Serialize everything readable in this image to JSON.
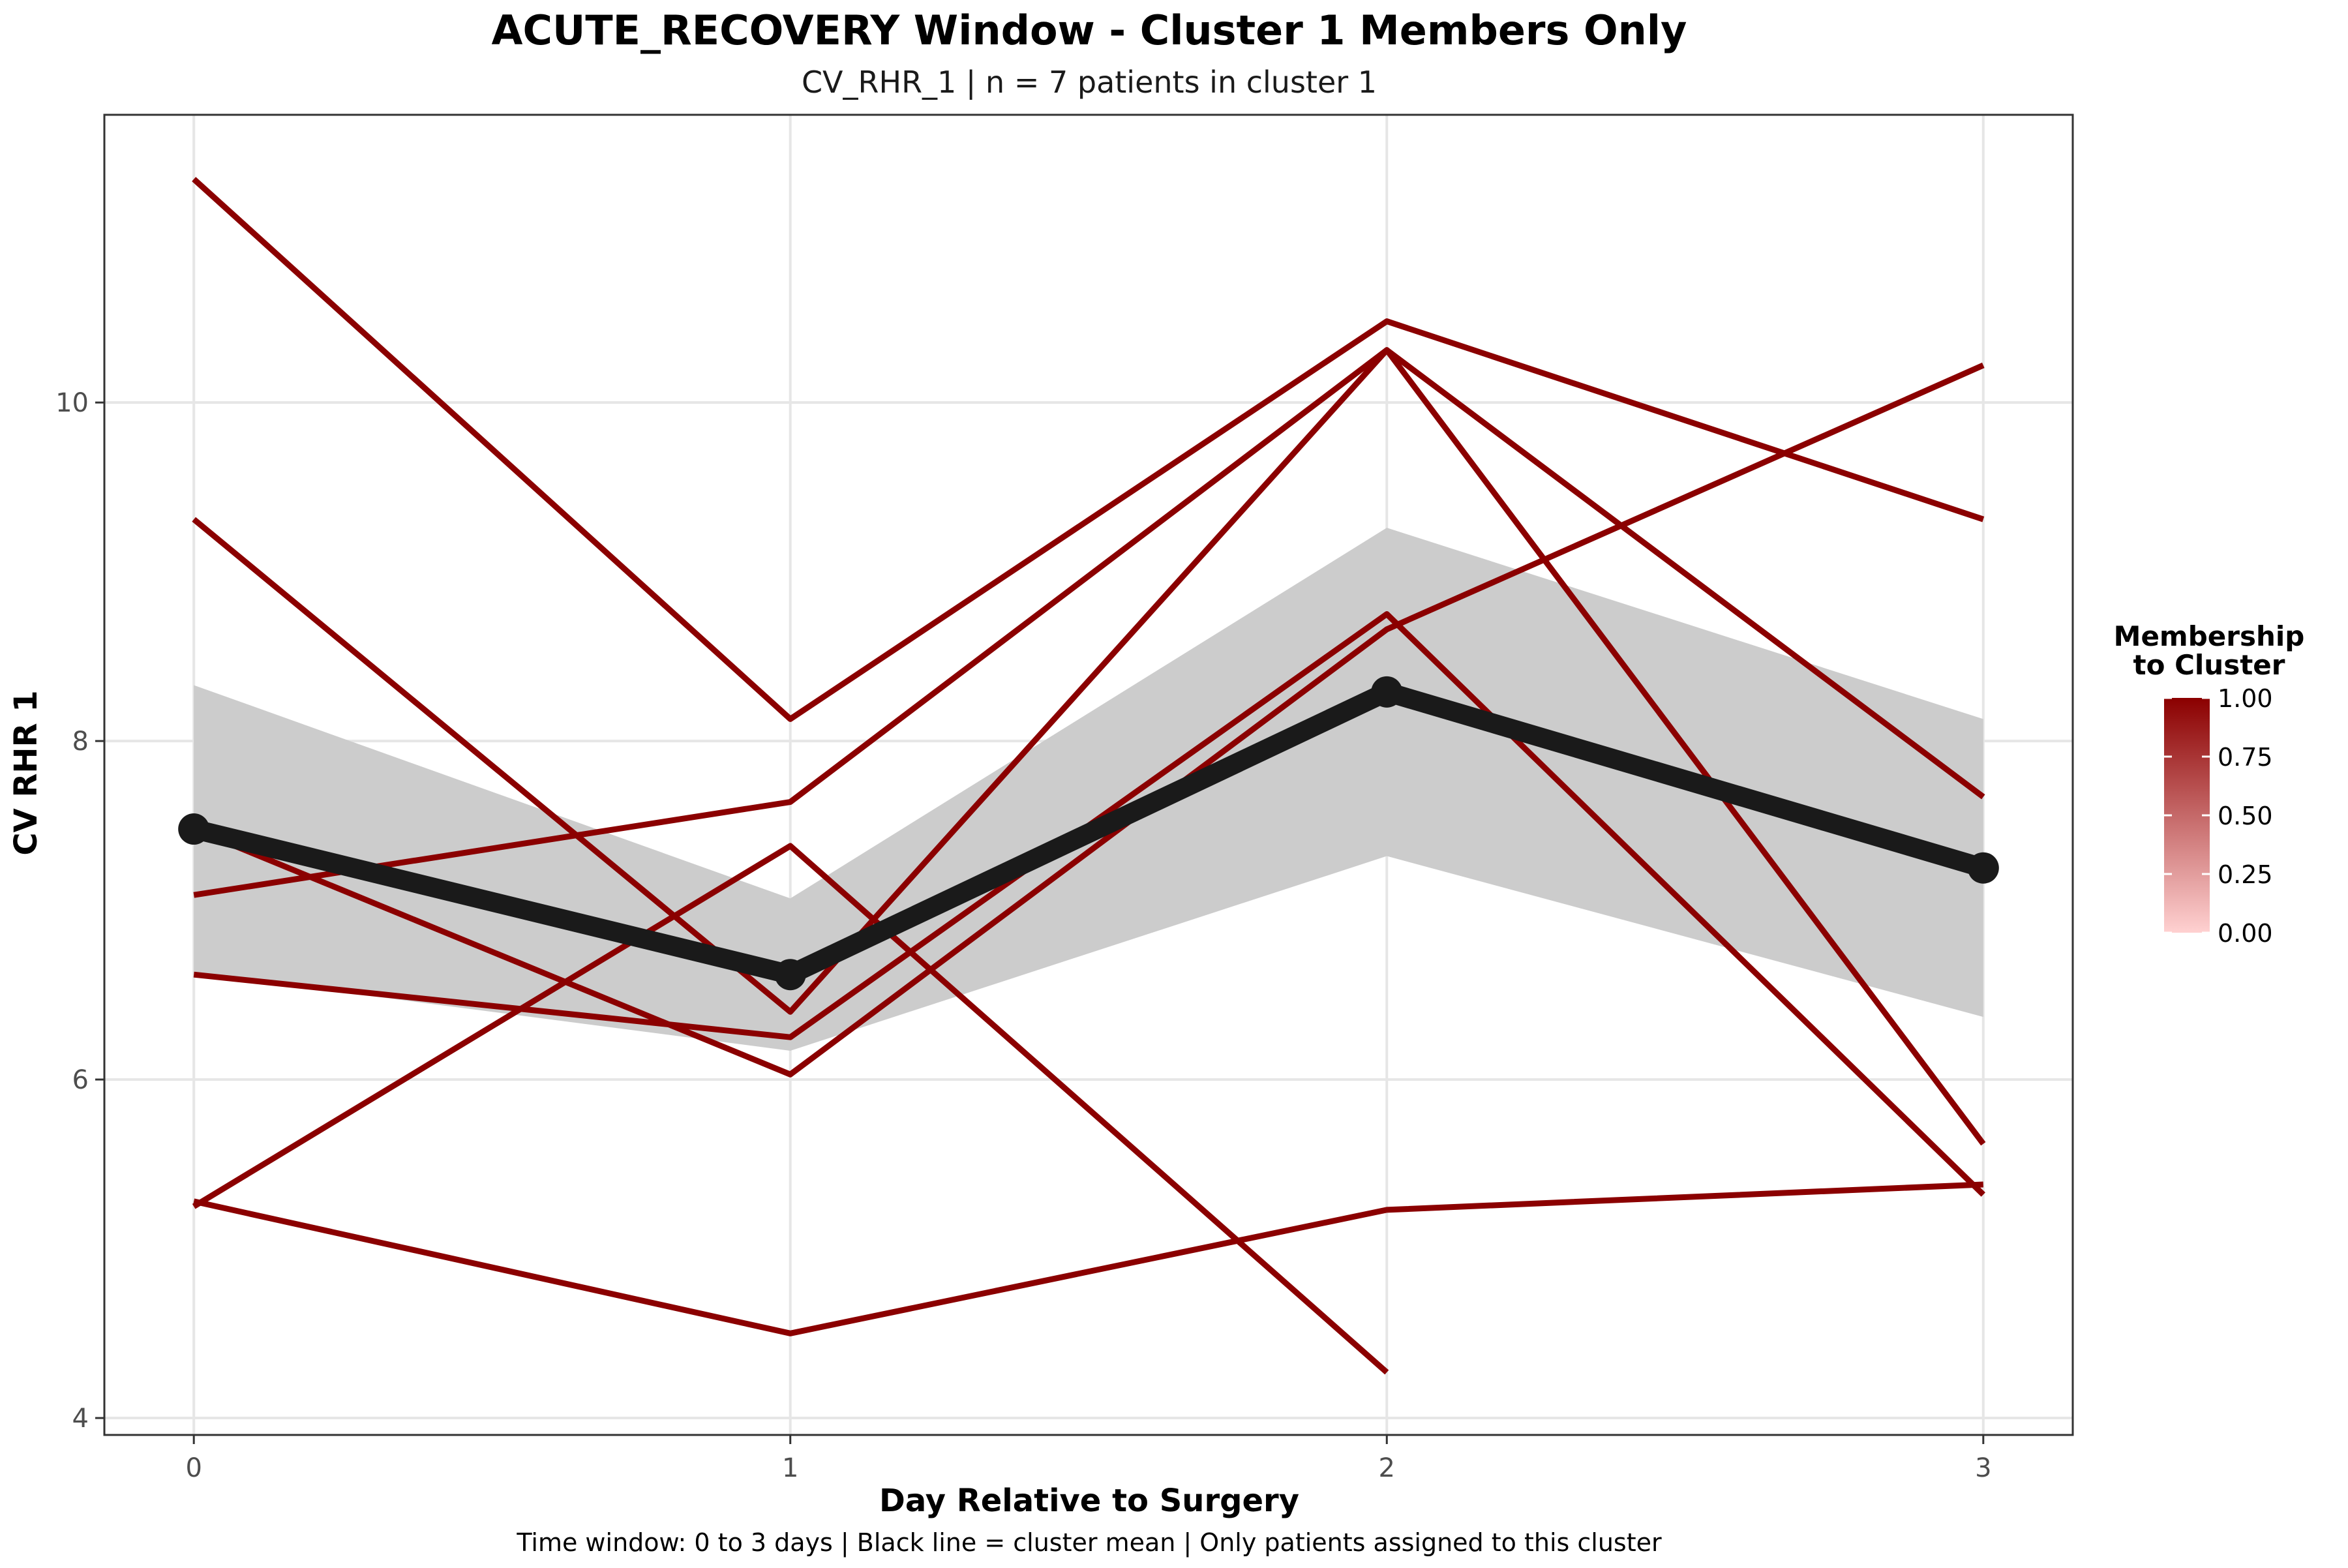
{
  "chart_data": {
    "type": "line",
    "title": "ACUTE_RECOVERY Window - Cluster 1 Members Only",
    "subtitle": "CV_RHR_1 | n = 7 patients in cluster 1",
    "xlabel": "Day Relative to Surgery",
    "ylabel": "CV RHR 1",
    "caption": "Time window: 0 to 3 days | Black line = cluster mean | Only patients assigned to this cluster",
    "x": [
      0,
      1,
      2,
      3
    ],
    "x_ticks": [
      0,
      1,
      2,
      3
    ],
    "x_tick_labels": [
      "0",
      "1",
      "2",
      "3"
    ],
    "y_ticks": [
      4,
      6,
      8,
      10
    ],
    "y_tick_labels": [
      "4",
      "6",
      "8",
      "10"
    ],
    "xlim": [
      -0.15,
      3.15
    ],
    "ylim": [
      3.9,
      11.7
    ],
    "grid": true,
    "series": [
      {
        "values": [
          11.32,
          8.13,
          10.48,
          9.31
        ],
        "membership": 1.0
      },
      {
        "values": [
          9.31,
          6.4,
          10.31,
          7.67
        ],
        "membership": 1.0
      },
      {
        "values": [
          7.09,
          7.64,
          10.31,
          5.62
        ],
        "membership": 1.0
      },
      {
        "values": [
          6.62,
          6.25,
          8.75,
          5.32
        ],
        "membership": 1.0
      },
      {
        "values": [
          5.25,
          7.38,
          4.27,
          null
        ],
        "membership": 1.0
      },
      {
        "values": [
          5.28,
          4.5,
          5.23,
          5.38
        ],
        "membership": 1.0
      },
      {
        "values": [
          7.48,
          6.03,
          8.66,
          10.22
        ],
        "membership": 1.0
      }
    ],
    "mean": {
      "values": [
        7.48,
        6.62,
        8.29,
        7.25
      ]
    },
    "ribbon": {
      "lower": [
        6.63,
        6.17,
        7.32,
        6.37
      ],
      "upper": [
        8.33,
        7.07,
        9.26,
        8.13
      ]
    },
    "legend": {
      "title": "Membership\nto Cluster",
      "placement": "right",
      "ticks": [
        1.0,
        0.75,
        0.5,
        0.25,
        0.0
      ],
      "tick_labels": [
        "1.00",
        "0.75",
        "0.50",
        "0.25",
        "0.00"
      ],
      "color_high": "#8b0000",
      "color_low": "#ffd1d1"
    },
    "colors": {
      "patient_line": "#8b0000",
      "mean_line": "#1a1a1a",
      "ribbon": "#cccccc",
      "grid": "#e6e6e6",
      "panel_border": "#333333"
    }
  }
}
